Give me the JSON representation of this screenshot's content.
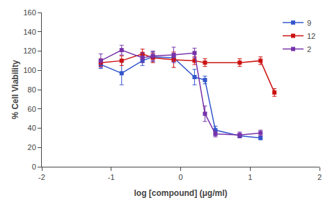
{
  "chart_data": {
    "type": "line",
    "marker": "square",
    "xlabel": "log [compound] (μg/ml)",
    "ylabel": "% Cell Viability",
    "xlim": [
      -2,
      2
    ],
    "ylim": [
      0,
      160
    ],
    "xticks": [
      -2,
      -1,
      0,
      1,
      2
    ],
    "yticks": [
      0,
      20,
      40,
      60,
      80,
      100,
      120,
      140,
      160
    ],
    "grid": false,
    "legend": "upper right",
    "series": [
      {
        "name": "9",
        "color": "#3355cc",
        "x": [
          -1.15,
          -0.85,
          -0.55,
          -0.4,
          -0.1,
          0.2,
          0.35,
          0.5,
          0.85,
          1.15
        ],
        "values": [
          106,
          97,
          110,
          114,
          113,
          93,
          90,
          38,
          32,
          30
        ],
        "yerr": [
          4,
          12,
          5,
          5,
          4,
          8,
          4,
          4,
          2,
          2
        ]
      },
      {
        "name": "12",
        "color": "#cc1111",
        "x": [
          -1.15,
          -0.85,
          -0.55,
          -0.4,
          -0.1,
          0.2,
          0.35,
          0.85,
          1.15,
          1.35
        ],
        "values": [
          108,
          110,
          117,
          113,
          111,
          110,
          108,
          108,
          110,
          77
        ],
        "yerr": [
          4,
          5,
          5,
          5,
          8,
          4,
          4,
          4,
          4,
          4
        ]
      },
      {
        "name": "2",
        "color": "#7733aa",
        "x": [
          -1.15,
          -0.85,
          -0.55,
          -0.4,
          -0.1,
          0.2,
          0.35,
          0.5,
          0.85,
          1.15
        ],
        "values": [
          110,
          121,
          113,
          115,
          116,
          118,
          55,
          34,
          33,
          35
        ],
        "yerr": [
          7,
          5,
          5,
          5,
          8,
          5,
          8,
          3,
          3,
          3
        ]
      }
    ]
  }
}
